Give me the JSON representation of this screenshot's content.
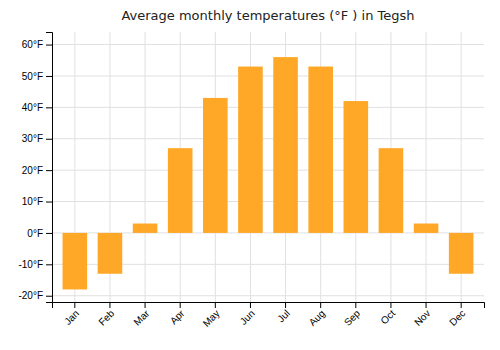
{
  "chart_data": {
    "type": "bar",
    "title": "Average monthly temperatures (°F ) in Tegsh",
    "categories": [
      "Jan",
      "Feb",
      "Mar",
      "Apr",
      "May",
      "Jun",
      "Jul",
      "Aug",
      "Sep",
      "Oct",
      "Nov",
      "Dec"
    ],
    "values": [
      -18,
      -13,
      3,
      27,
      43,
      53,
      56,
      53,
      42,
      27,
      3,
      -13
    ],
    "color": "#FFA726",
    "ylim": [
      -22,
      64
    ],
    "yticks": [
      {
        "value": -20,
        "label": "-20°F"
      },
      {
        "value": -10,
        "label": "-10°F"
      },
      {
        "value": 0,
        "label": "0°F"
      },
      {
        "value": 10,
        "label": "10°F"
      },
      {
        "value": 20,
        "label": "20°F"
      },
      {
        "value": 30,
        "label": "30°F"
      },
      {
        "value": 40,
        "label": "40°F"
      },
      {
        "value": 50,
        "label": "50°F"
      },
      {
        "value": 60,
        "label": "60°F"
      }
    ],
    "grid": true
  }
}
